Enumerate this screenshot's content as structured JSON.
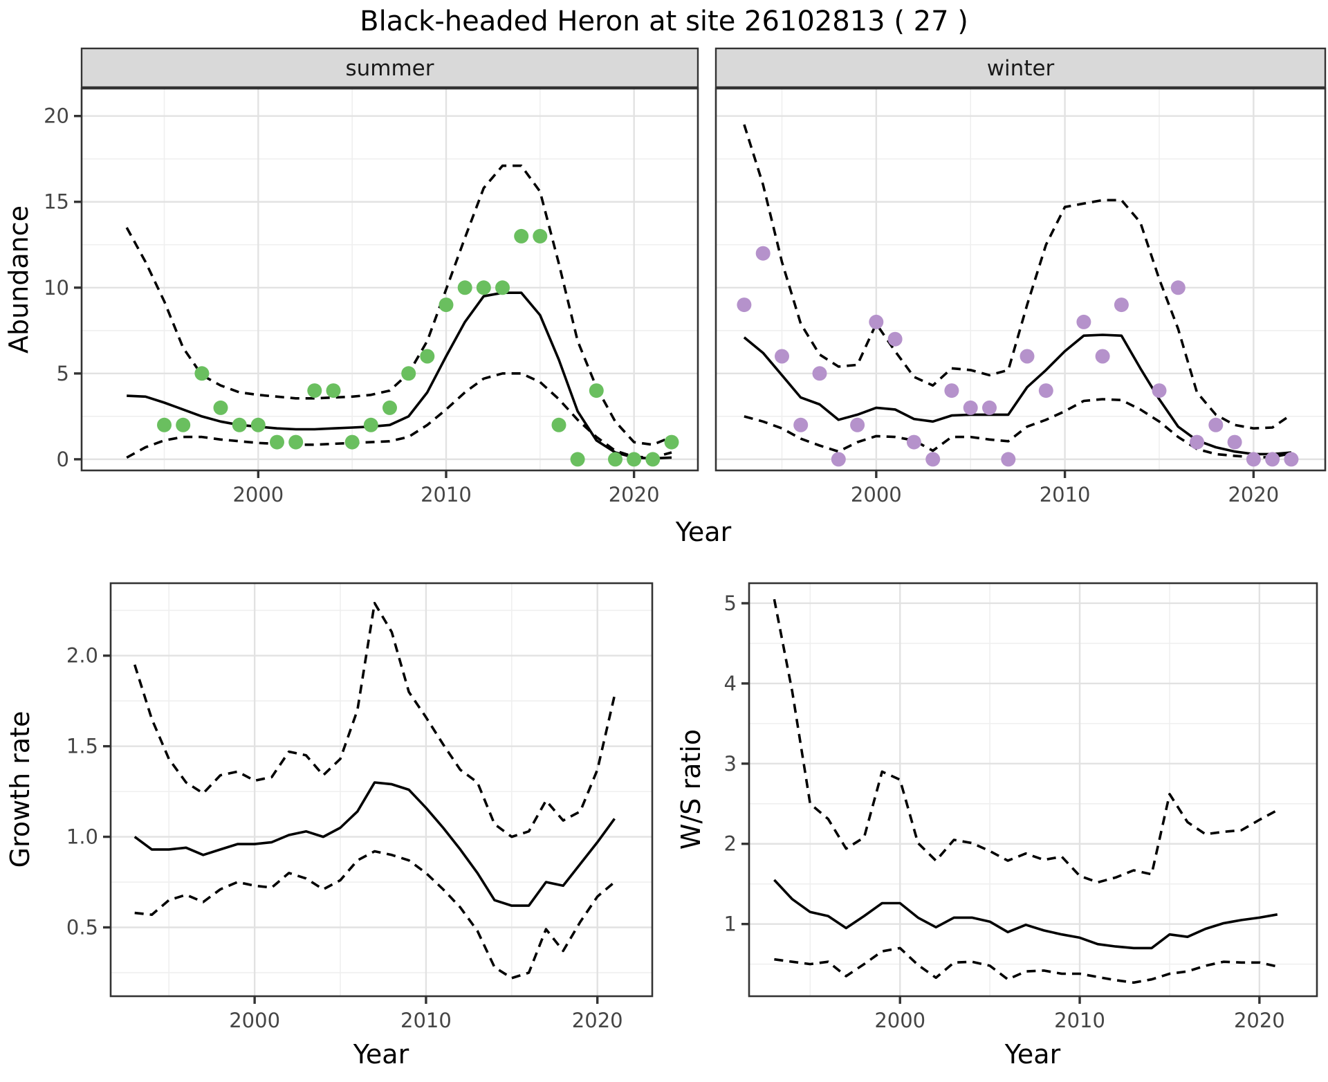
{
  "title": "Black-headed Heron at site 26102813 ( 27 )",
  "colors": {
    "summer_point": "#6abf5f",
    "winter_point": "#b592cb",
    "line": "#000000",
    "strip_bg": "#d9d9d9",
    "strip_border": "#333333",
    "panel_border": "#333333",
    "grid_major": "#e2e2e2",
    "grid_minor": "#efefef",
    "tick_mark": "#333333",
    "tick_label": "#454545"
  },
  "axis_titles": {
    "abundance": "Abundance",
    "year_top": "Year",
    "growth": "Growth rate",
    "year_growth": "Year",
    "ws": "W/S ratio",
    "year_ws": "Year"
  },
  "chart_data": [
    {
      "id": "abundance-summer",
      "type": "line",
      "facet_label": "summer",
      "xlabel": "Year",
      "ylabel": "Abundance",
      "xlim": [
        1990.6,
        2023.4
      ],
      "ylim": [
        -0.65,
        21.6
      ],
      "xticks": {
        "values": [
          2000,
          2010,
          2020
        ],
        "labels": [
          "2000",
          "2010",
          "2020"
        ]
      },
      "xminor": [
        1995,
        2005,
        2015
      ],
      "yticks": {
        "values": [
          0,
          5,
          10,
          15,
          20
        ],
        "labels": [
          "0",
          "5",
          "10",
          "15",
          "20"
        ]
      },
      "yminor": [
        2.5,
        7.5,
        12.5,
        17.5
      ],
      "x": [
        1993,
        1994,
        1995,
        1996,
        1997,
        1998,
        1999,
        2000,
        2001,
        2002,
        2003,
        2004,
        2005,
        2006,
        2007,
        2008,
        2009,
        2010,
        2011,
        2012,
        2013,
        2014,
        2015,
        2016,
        2017,
        2018,
        2019,
        2020,
        2021,
        2022
      ],
      "series": [
        {
          "name": "fit",
          "style": "solid",
          "values": [
            3.7,
            3.65,
            3.3,
            2.9,
            2.5,
            2.2,
            2.0,
            1.9,
            1.8,
            1.75,
            1.75,
            1.8,
            1.85,
            1.9,
            2.0,
            2.5,
            3.9,
            6.0,
            8.0,
            9.5,
            9.7,
            9.7,
            8.4,
            5.8,
            2.8,
            1.1,
            0.4,
            0.1,
            0.05,
            0.1
          ]
        },
        {
          "name": "upper_ci",
          "style": "dashed",
          "values": [
            13.5,
            11.5,
            9.2,
            6.5,
            4.9,
            4.3,
            3.9,
            3.75,
            3.65,
            3.55,
            3.55,
            3.6,
            3.65,
            3.75,
            4.0,
            5.0,
            6.9,
            9.9,
            12.9,
            15.8,
            17.1,
            17.1,
            15.6,
            11.4,
            6.9,
            4.2,
            2.2,
            1.0,
            0.85,
            1.3
          ]
        },
        {
          "name": "lower_ci",
          "style": "dashed",
          "values": [
            0.1,
            0.7,
            1.1,
            1.3,
            1.3,
            1.15,
            1.05,
            0.95,
            0.9,
            0.85,
            0.85,
            0.9,
            0.95,
            1.0,
            1.05,
            1.3,
            2.0,
            2.9,
            3.9,
            4.7,
            5.0,
            5.0,
            4.5,
            3.5,
            2.3,
            1.3,
            0.5,
            0.15,
            0.1,
            0.4
          ]
        }
      ],
      "points": {
        "x": [
          1995,
          1996,
          1997,
          1998,
          1999,
          2000,
          2001,
          2002,
          2003,
          2004,
          2005,
          2006,
          2007,
          2008,
          2009,
          2010,
          2011,
          2012,
          2013,
          2014,
          2015,
          2016,
          2017,
          2018,
          2019,
          2020,
          2021,
          2022
        ],
        "y": [
          2,
          2,
          5,
          3,
          2,
          2,
          1,
          1,
          4,
          4,
          1,
          2,
          3,
          5,
          6,
          9,
          10,
          10,
          10,
          13,
          13,
          2,
          0,
          4,
          0,
          0,
          0,
          1
        ],
        "color_key": "summer_point"
      }
    },
    {
      "id": "abundance-winter",
      "type": "line",
      "facet_label": "winter",
      "xlabel": "Year",
      "ylabel": "Abundance",
      "xlim": [
        1991.5,
        2023.8
      ],
      "ylim": [
        -0.65,
        21.6
      ],
      "xticks": {
        "values": [
          2000,
          2010,
          2020
        ],
        "labels": [
          "2000",
          "2010",
          "2020"
        ]
      },
      "xminor": [
        1995,
        2005,
        2015
      ],
      "yticks": {
        "values": [
          0,
          5,
          10,
          15,
          20
        ],
        "labels": [
          "0",
          "5",
          "10",
          "15",
          "20"
        ]
      },
      "yminor": [
        2.5,
        7.5,
        12.5,
        17.5
      ],
      "x": [
        1993,
        1994,
        1995,
        1996,
        1997,
        1998,
        1999,
        2000,
        2001,
        2002,
        2003,
        2004,
        2005,
        2006,
        2007,
        2008,
        2009,
        2010,
        2011,
        2012,
        2013,
        2014,
        2015,
        2016,
        2017,
        2018,
        2019,
        2020,
        2021,
        2022
      ],
      "series": [
        {
          "name": "fit",
          "style": "solid",
          "values": [
            7.1,
            6.2,
            4.9,
            3.6,
            3.2,
            2.3,
            2.6,
            3.0,
            2.9,
            2.35,
            2.2,
            2.55,
            2.6,
            2.6,
            2.6,
            4.2,
            5.2,
            6.3,
            7.2,
            7.25,
            7.2,
            5.3,
            3.5,
            1.9,
            1.1,
            0.7,
            0.45,
            0.3,
            0.3,
            0.4
          ]
        },
        {
          "name": "upper_ci",
          "style": "dashed",
          "values": [
            19.5,
            16.0,
            11.5,
            7.9,
            6.1,
            5.4,
            5.5,
            7.9,
            6.3,
            4.8,
            4.3,
            5.3,
            5.2,
            4.9,
            5.2,
            9.0,
            12.5,
            14.7,
            14.9,
            15.1,
            15.1,
            13.8,
            10.5,
            7.6,
            3.9,
            2.6,
            2.0,
            1.8,
            1.85,
            2.6
          ]
        },
        {
          "name": "lower_ci",
          "style": "dashed",
          "values": [
            2.5,
            2.2,
            1.8,
            1.2,
            0.8,
            0.45,
            1.0,
            1.35,
            1.3,
            1.1,
            0.5,
            1.3,
            1.3,
            1.15,
            1.05,
            1.9,
            2.3,
            2.8,
            3.4,
            3.5,
            3.45,
            2.9,
            2.2,
            1.3,
            0.6,
            0.3,
            0.2,
            0.12,
            0.12,
            0.35
          ]
        }
      ],
      "points": {
        "x": [
          1993,
          1994,
          1995,
          1996,
          1997,
          1998,
          1999,
          2000,
          2001,
          2002,
          2003,
          2004,
          2005,
          2006,
          2007,
          2008,
          2009,
          2011,
          2012,
          2013,
          2015,
          2016,
          2017,
          2018,
          2019,
          2020,
          2021,
          2022
        ],
        "y": [
          9,
          12,
          6,
          2,
          5,
          0,
          2,
          8,
          7,
          1,
          0,
          4,
          3,
          3,
          0,
          6,
          4,
          8,
          6,
          9,
          4,
          10,
          1,
          2,
          1,
          0,
          0,
          0
        ],
        "color_key": "winter_point"
      }
    },
    {
      "id": "growth-rate",
      "type": "line",
      "facet_label": null,
      "xlabel": "Year",
      "ylabel": "Growth rate",
      "xlim": [
        1991.6,
        2023.2
      ],
      "ylim": [
        0.12,
        2.4
      ],
      "xticks": {
        "values": [
          2000,
          2010,
          2020
        ],
        "labels": [
          "2000",
          "2010",
          "2020"
        ]
      },
      "xminor": [
        1995,
        2005,
        2015
      ],
      "yticks": {
        "values": [
          0.5,
          1.0,
          1.5,
          2.0
        ],
        "labels": [
          "0.5",
          "1.0",
          "1.5",
          "2.0"
        ]
      },
      "yminor": [
        0.25,
        0.75,
        1.25,
        1.75,
        2.25
      ],
      "x": [
        1993,
        1994,
        1995,
        1996,
        1997,
        1998,
        1999,
        2000,
        2001,
        2002,
        2003,
        2004,
        2005,
        2006,
        2007,
        2008,
        2009,
        2010,
        2011,
        2012,
        2013,
        2014,
        2015,
        2016,
        2017,
        2018,
        2019,
        2020,
        2021
      ],
      "series": [
        {
          "name": "fit",
          "style": "solid",
          "values": [
            1.0,
            0.93,
            0.93,
            0.94,
            0.9,
            0.93,
            0.96,
            0.96,
            0.97,
            1.01,
            1.03,
            1.0,
            1.05,
            1.14,
            1.3,
            1.29,
            1.26,
            1.16,
            1.05,
            0.93,
            0.8,
            0.65,
            0.62,
            0.62,
            0.75,
            0.73,
            0.85,
            0.97,
            1.1
          ]
        },
        {
          "name": "upper_ci",
          "style": "dashed",
          "values": [
            1.95,
            1.65,
            1.43,
            1.3,
            1.24,
            1.34,
            1.36,
            1.31,
            1.33,
            1.47,
            1.45,
            1.34,
            1.43,
            1.7,
            2.29,
            2.13,
            1.8,
            1.66,
            1.51,
            1.37,
            1.3,
            1.07,
            1.0,
            1.03,
            1.2,
            1.09,
            1.14,
            1.37,
            1.78
          ]
        },
        {
          "name": "lower_ci",
          "style": "dashed",
          "values": [
            0.58,
            0.57,
            0.65,
            0.68,
            0.64,
            0.71,
            0.75,
            0.73,
            0.72,
            0.8,
            0.77,
            0.71,
            0.76,
            0.87,
            0.92,
            0.9,
            0.87,
            0.8,
            0.71,
            0.61,
            0.48,
            0.28,
            0.22,
            0.25,
            0.49,
            0.37,
            0.53,
            0.67,
            0.75
          ]
        }
      ],
      "points": null
    },
    {
      "id": "ws-ratio",
      "type": "line",
      "facet_label": null,
      "xlabel": "Year",
      "ylabel": "W/S ratio",
      "xlim": [
        1991.6,
        2023.2
      ],
      "ylim": [
        0.1,
        5.25
      ],
      "xticks": {
        "values": [
          2000,
          2010,
          2020
        ],
        "labels": [
          "2000",
          "2010",
          "2020"
        ]
      },
      "xminor": [
        1995,
        2005,
        2015
      ],
      "yticks": {
        "values": [
          1,
          2,
          3,
          4,
          5
        ],
        "labels": [
          "1",
          "2",
          "3",
          "4",
          "5"
        ]
      },
      "yminor": [
        0.5,
        1.5,
        2.5,
        3.5,
        4.5
      ],
      "x": [
        1993,
        1994,
        1995,
        1996,
        1997,
        1998,
        1999,
        2000,
        2001,
        2002,
        2003,
        2004,
        2005,
        2006,
        2007,
        2008,
        2009,
        2010,
        2011,
        2012,
        2013,
        2014,
        2015,
        2016,
        2017,
        2018,
        2019,
        2020,
        2021
      ],
      "series": [
        {
          "name": "fit",
          "style": "solid",
          "values": [
            1.55,
            1.31,
            1.15,
            1.1,
            0.95,
            1.1,
            1.26,
            1.26,
            1.08,
            0.96,
            1.08,
            1.08,
            1.03,
            0.9,
            0.99,
            0.92,
            0.87,
            0.83,
            0.75,
            0.72,
            0.7,
            0.7,
            0.87,
            0.84,
            0.94,
            1.01,
            1.05,
            1.08,
            1.12
          ]
        },
        {
          "name": "upper_ci",
          "style": "dashed",
          "values": [
            5.05,
            3.9,
            2.5,
            2.31,
            1.94,
            2.08,
            2.9,
            2.8,
            2.01,
            1.79,
            2.05,
            2.01,
            1.91,
            1.79,
            1.88,
            1.8,
            1.84,
            1.6,
            1.52,
            1.58,
            1.67,
            1.62,
            2.62,
            2.27,
            2.12,
            2.15,
            2.17,
            2.3,
            2.42
          ]
        },
        {
          "name": "lower_ci",
          "style": "dashed",
          "values": [
            0.56,
            0.53,
            0.5,
            0.53,
            0.35,
            0.5,
            0.66,
            0.7,
            0.49,
            0.33,
            0.52,
            0.53,
            0.48,
            0.31,
            0.41,
            0.42,
            0.38,
            0.38,
            0.34,
            0.3,
            0.27,
            0.31,
            0.38,
            0.41,
            0.48,
            0.53,
            0.52,
            0.52,
            0.47
          ]
        }
      ],
      "points": null
    }
  ]
}
